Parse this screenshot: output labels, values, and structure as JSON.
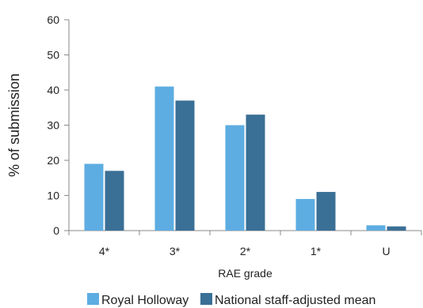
{
  "chart_data": {
    "type": "bar",
    "categories": [
      "4*",
      "3*",
      "2*",
      "1*",
      "U"
    ],
    "series": [
      {
        "name": "Royal Holloway",
        "values": [
          19,
          41,
          30,
          9,
          1.5
        ],
        "color": "#5dade2"
      },
      {
        "name": "National staff-adjusted mean",
        "values": [
          17,
          37,
          33,
          11,
          1.2
        ],
        "color": "#3a6f96"
      }
    ],
    "xlabel": "RAE grade",
    "ylabel": "% of submission",
    "ylim": [
      0,
      60
    ],
    "yticks": [
      0,
      10,
      20,
      30,
      40,
      50,
      60
    ],
    "grid": false,
    "legend": "bottom-center",
    "axis_color": "#888888"
  }
}
